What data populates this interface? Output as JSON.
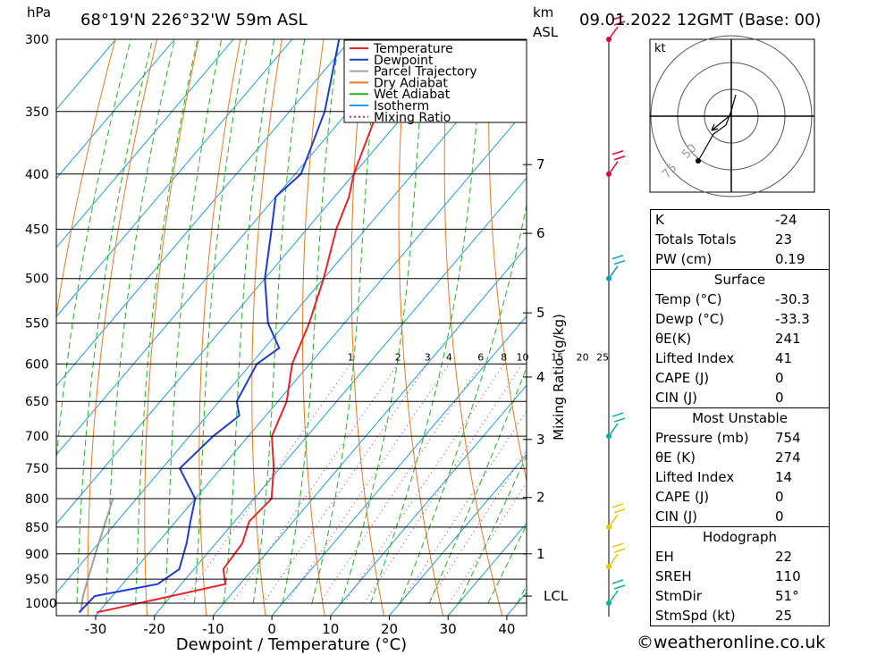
{
  "header": {
    "pressure_unit": "hPa",
    "location": "68°19'N  226°32'W  59m  ASL",
    "height_unit_line1": "km",
    "height_unit_line2": "ASL",
    "datetime": "09.01.2022  12GMT  (Base: 00)"
  },
  "chart_data": {
    "type": "skew-t log-p sounding",
    "xlabel": "Dewpoint / Temperature (°C)",
    "ylabel": "hPa",
    "mixing_ratio_axis_label": "Mixing Ratio (g/kg)",
    "x_ticks": [
      -30,
      -20,
      -10,
      0,
      10,
      20,
      30,
      40
    ],
    "pressure_levels": [
      300,
      350,
      400,
      450,
      500,
      550,
      600,
      650,
      700,
      750,
      800,
      850,
      900,
      950,
      1000
    ],
    "km_ticks": [
      {
        "label": "7",
        "p": 392
      },
      {
        "label": "6",
        "p": 454
      },
      {
        "label": "5",
        "p": 538
      },
      {
        "label": "4",
        "p": 617
      },
      {
        "label": "3",
        "p": 705
      },
      {
        "label": "2",
        "p": 798
      },
      {
        "label": "1",
        "p": 900
      },
      {
        "label": "LCL",
        "p": 985
      }
    ],
    "mixing_ratio_labels": [
      "1",
      "2",
      "3",
      "4",
      "6",
      "8",
      "10",
      "15",
      "20",
      "25"
    ],
    "mixing_ratio_values": [
      1,
      2,
      3,
      4,
      6,
      8,
      10,
      15,
      20,
      25
    ],
    "legend": [
      {
        "name": "Temperature",
        "color": "#e8262a",
        "style": "solid"
      },
      {
        "name": "Dewpoint",
        "color": "#1e3cd2",
        "style": "solid"
      },
      {
        "name": "Parcel Trajectory",
        "color": "#a0a0a0",
        "style": "solid"
      },
      {
        "name": "Dry Adiabat",
        "color": "#e87a1e",
        "style": "solid"
      },
      {
        "name": "Wet Adiabat",
        "color": "#22b422",
        "style": "solid"
      },
      {
        "name": "Isotherm",
        "color": "#20a0e0",
        "style": "solid"
      },
      {
        "name": "Mixing Ratio",
        "color": "#c020a0",
        "style": "dotted"
      }
    ],
    "temperature": [
      {
        "p": 1020,
        "t": -30.3
      },
      {
        "p": 985,
        "t": -20
      },
      {
        "p": 960,
        "t": -12.5
      },
      {
        "p": 930,
        "t": -15
      },
      {
        "p": 880,
        "t": -15.5
      },
      {
        "p": 840,
        "t": -17.5
      },
      {
        "p": 800,
        "t": -17
      },
      {
        "p": 750,
        "t": -21
      },
      {
        "p": 700,
        "t": -26
      },
      {
        "p": 650,
        "t": -28.5
      },
      {
        "p": 600,
        "t": -33
      },
      {
        "p": 550,
        "t": -36
      },
      {
        "p": 500,
        "t": -40
      },
      {
        "p": 450,
        "t": -45
      },
      {
        "p": 420,
        "t": -47.5
      },
      {
        "p": 400,
        "t": -50
      },
      {
        "p": 350,
        "t": -55
      },
      {
        "p": 300,
        "t": -61
      }
    ],
    "dewpoint": [
      {
        "p": 1020,
        "t": -33.3
      },
      {
        "p": 985,
        "t": -33
      },
      {
        "p": 960,
        "t": -24
      },
      {
        "p": 930,
        "t": -22.5
      },
      {
        "p": 880,
        "t": -25
      },
      {
        "p": 840,
        "t": -27.5
      },
      {
        "p": 800,
        "t": -30
      },
      {
        "p": 750,
        "t": -37
      },
      {
        "p": 700,
        "t": -36
      },
      {
        "p": 670,
        "t": -34.5
      },
      {
        "p": 650,
        "t": -37
      },
      {
        "p": 600,
        "t": -39
      },
      {
        "p": 580,
        "t": -37.5
      },
      {
        "p": 550,
        "t": -43
      },
      {
        "p": 500,
        "t": -50
      },
      {
        "p": 450,
        "t": -56
      },
      {
        "p": 420,
        "t": -60
      },
      {
        "p": 400,
        "t": -59
      },
      {
        "p": 350,
        "t": -64
      },
      {
        "p": 300,
        "t": -72
      }
    ],
    "parcel": [
      {
        "p": 1020,
        "t": -33
      },
      {
        "p": 985,
        "t": -35
      },
      {
        "p": 900,
        "t": -39
      },
      {
        "p": 800,
        "t": -44
      }
    ]
  },
  "wind_barbs": {
    "colors": [
      "#e8003c",
      "#e8003c",
      "#00a0c8",
      "#00b4a0",
      "#e8c800",
      "#e8c800",
      "#00b4a0"
    ],
    "levels": [
      300,
      400,
      500,
      700,
      850,
      925,
      1000
    ]
  },
  "hodograph": {
    "unit": "kt",
    "ring_labels": [
      "50",
      "75"
    ]
  },
  "indices": {
    "top": [
      {
        "label": "K",
        "value": "-24"
      },
      {
        "label": "Totals Totals",
        "value": "23"
      },
      {
        "label": "PW (cm)",
        "value": "0.19"
      }
    ],
    "surface": {
      "title": "Surface",
      "rows": [
        {
          "label": "Temp (°C)",
          "value": "-30.3"
        },
        {
          "label": "Dewp (°C)",
          "value": "-33.3"
        },
        {
          "label": "θE(K)",
          "value": "241"
        },
        {
          "label": "Lifted Index",
          "value": "41"
        },
        {
          "label": "CAPE (J)",
          "value": "0"
        },
        {
          "label": "CIN (J)",
          "value": "0"
        }
      ]
    },
    "most_unstable": {
      "title": "Most Unstable",
      "rows": [
        {
          "label": "Pressure (mb)",
          "value": "754"
        },
        {
          "label": "θE (K)",
          "value": "274"
        },
        {
          "label": "Lifted Index",
          "value": "14"
        },
        {
          "label": "CAPE (J)",
          "value": "0"
        },
        {
          "label": "CIN (J)",
          "value": "0"
        }
      ]
    },
    "hodograph": {
      "title": "Hodograph",
      "rows": [
        {
          "label": "EH",
          "value": "22"
        },
        {
          "label": "SREH",
          "value": "110"
        },
        {
          "label": "StmDir",
          "value": "51°"
        },
        {
          "label": "StmSpd (kt)",
          "value": "25"
        }
      ]
    }
  },
  "footer": {
    "copyright_symbol": "©",
    "site": "weatheronline.co.uk"
  }
}
